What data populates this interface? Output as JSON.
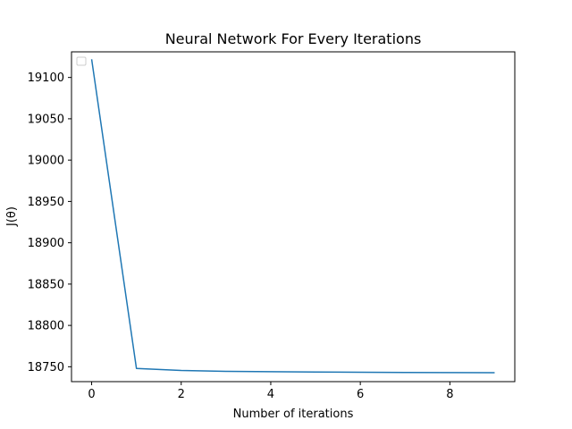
{
  "chart_data": {
    "type": "line",
    "title": "Neural Network For Every Iterations",
    "xlabel": "Number of iterations",
    "ylabel": "J(θ)",
    "x": [
      0,
      1,
      2,
      3,
      4,
      5,
      6,
      7,
      8,
      9
    ],
    "series": [
      {
        "values": [
          19122,
          18748,
          18745.5,
          18744.5,
          18744,
          18743.6,
          18743.3,
          18743.1,
          18742.9,
          18742.8
        ],
        "color": "#1f77b4"
      }
    ],
    "xlim": [
      -0.45,
      9.45
    ],
    "ylim": [
      18732,
      19131
    ],
    "xticks": [
      0,
      2,
      4,
      6,
      8
    ],
    "xtick_labels": [
      "0",
      "2",
      "4",
      "6",
      "8"
    ],
    "yticks": [
      18750,
      18800,
      18850,
      18900,
      18950,
      19000,
      19050,
      19100
    ],
    "ytick_labels": [
      "18750",
      "18800",
      "18850",
      "18900",
      "18950",
      "19000",
      "19050",
      "19100"
    ],
    "grid": false,
    "legend": {
      "placement": "top-left",
      "entries": []
    }
  }
}
